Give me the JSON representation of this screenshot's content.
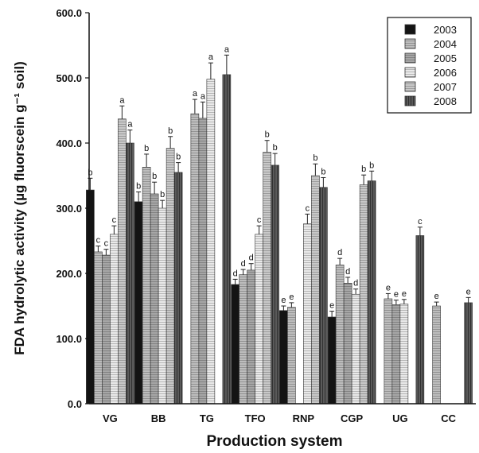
{
  "chart_data": {
    "type": "bar",
    "xlabel": "Production system",
    "ylabel": "FDA hydrolytic activity (µg fluorscein g⁻¹ soil)",
    "ylim": [
      0,
      600
    ],
    "yticks": [
      "0.0",
      "100.0",
      "200.0",
      "300.0",
      "400.0",
      "500.0",
      "600.0"
    ],
    "legend_position": "top-right",
    "categories": [
      "VG",
      "BB",
      "TG",
      "TFO",
      "RNP",
      "CGP",
      "UG",
      "CC"
    ],
    "series": [
      {
        "name": "2003",
        "color": "#141414",
        "pattern": "solid",
        "values": [
          328,
          310,
          null,
          183,
          143,
          133,
          null,
          null
        ],
        "errors": [
          18,
          15,
          null,
          8,
          7,
          9,
          null,
          null
        ],
        "labels": [
          "b",
          "b",
          "",
          "d",
          "e",
          "e",
          "",
          ""
        ]
      },
      {
        "name": "2004",
        "color": "#bdbdbd",
        "pattern": "hlines",
        "values": [
          233,
          363,
          445,
          198,
          148,
          213,
          161,
          150
        ],
        "errors": [
          9,
          20,
          22,
          8,
          7,
          10,
          8,
          6
        ],
        "labels": [
          "c",
          "b",
          "a",
          "d",
          "e",
          "d",
          "e",
          "e"
        ]
      },
      {
        "name": "2005",
        "color": "#a6a6a6",
        "pattern": "hlines",
        "values": [
          228,
          322,
          438,
          205,
          null,
          185,
          152,
          null
        ],
        "errors": [
          9,
          18,
          25,
          10,
          null,
          9,
          7,
          null
        ],
        "labels": [
          "c",
          "b",
          "a",
          "d",
          "",
          "d",
          "e",
          ""
        ]
      },
      {
        "name": "2006",
        "color": "#e9e9e9",
        "pattern": "hlines",
        "values": [
          260,
          300,
          498,
          260,
          276,
          168,
          153,
          null
        ],
        "errors": [
          13,
          12,
          25,
          13,
          15,
          8,
          7,
          null
        ],
        "labels": [
          "c",
          "b",
          "a",
          "c",
          "c",
          "d",
          "e",
          ""
        ]
      },
      {
        "name": "2007",
        "color": "#c8c8c8",
        "pattern": "hlines",
        "values": [
          437,
          392,
          null,
          386,
          350,
          336,
          null,
          null
        ],
        "errors": [
          20,
          18,
          null,
          18,
          18,
          15,
          null,
          null
        ],
        "labels": [
          "a",
          "b",
          "",
          "b",
          "b",
          "b",
          "",
          ""
        ]
      },
      {
        "name": "2008",
        "color": "#5a5a5a",
        "pattern": "vlines",
        "values": [
          400,
          355,
          505,
          366,
          332,
          342,
          258,
          155
        ],
        "errors": [
          20,
          15,
          30,
          18,
          15,
          15,
          13,
          8
        ],
        "labels": [
          "a",
          "b",
          "a",
          "b",
          "b",
          "b",
          "c",
          "e"
        ]
      }
    ]
  }
}
